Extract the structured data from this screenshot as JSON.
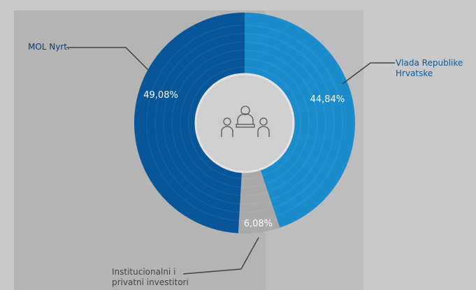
{
  "chart_data": {
    "type": "pie",
    "categories": [
      "Vlada Republike Hrvatske",
      "Institucionalni i privatni investitori",
      "MOL  Nyrt."
    ],
    "values": [
      44.84,
      6.08,
      49.08
    ],
    "value_labels": [
      "44,84%",
      "6,08%",
      "49,08%"
    ],
    "colors": [
      "#1a8ccc",
      "#a9a9a9",
      "#08569a"
    ]
  }
}
